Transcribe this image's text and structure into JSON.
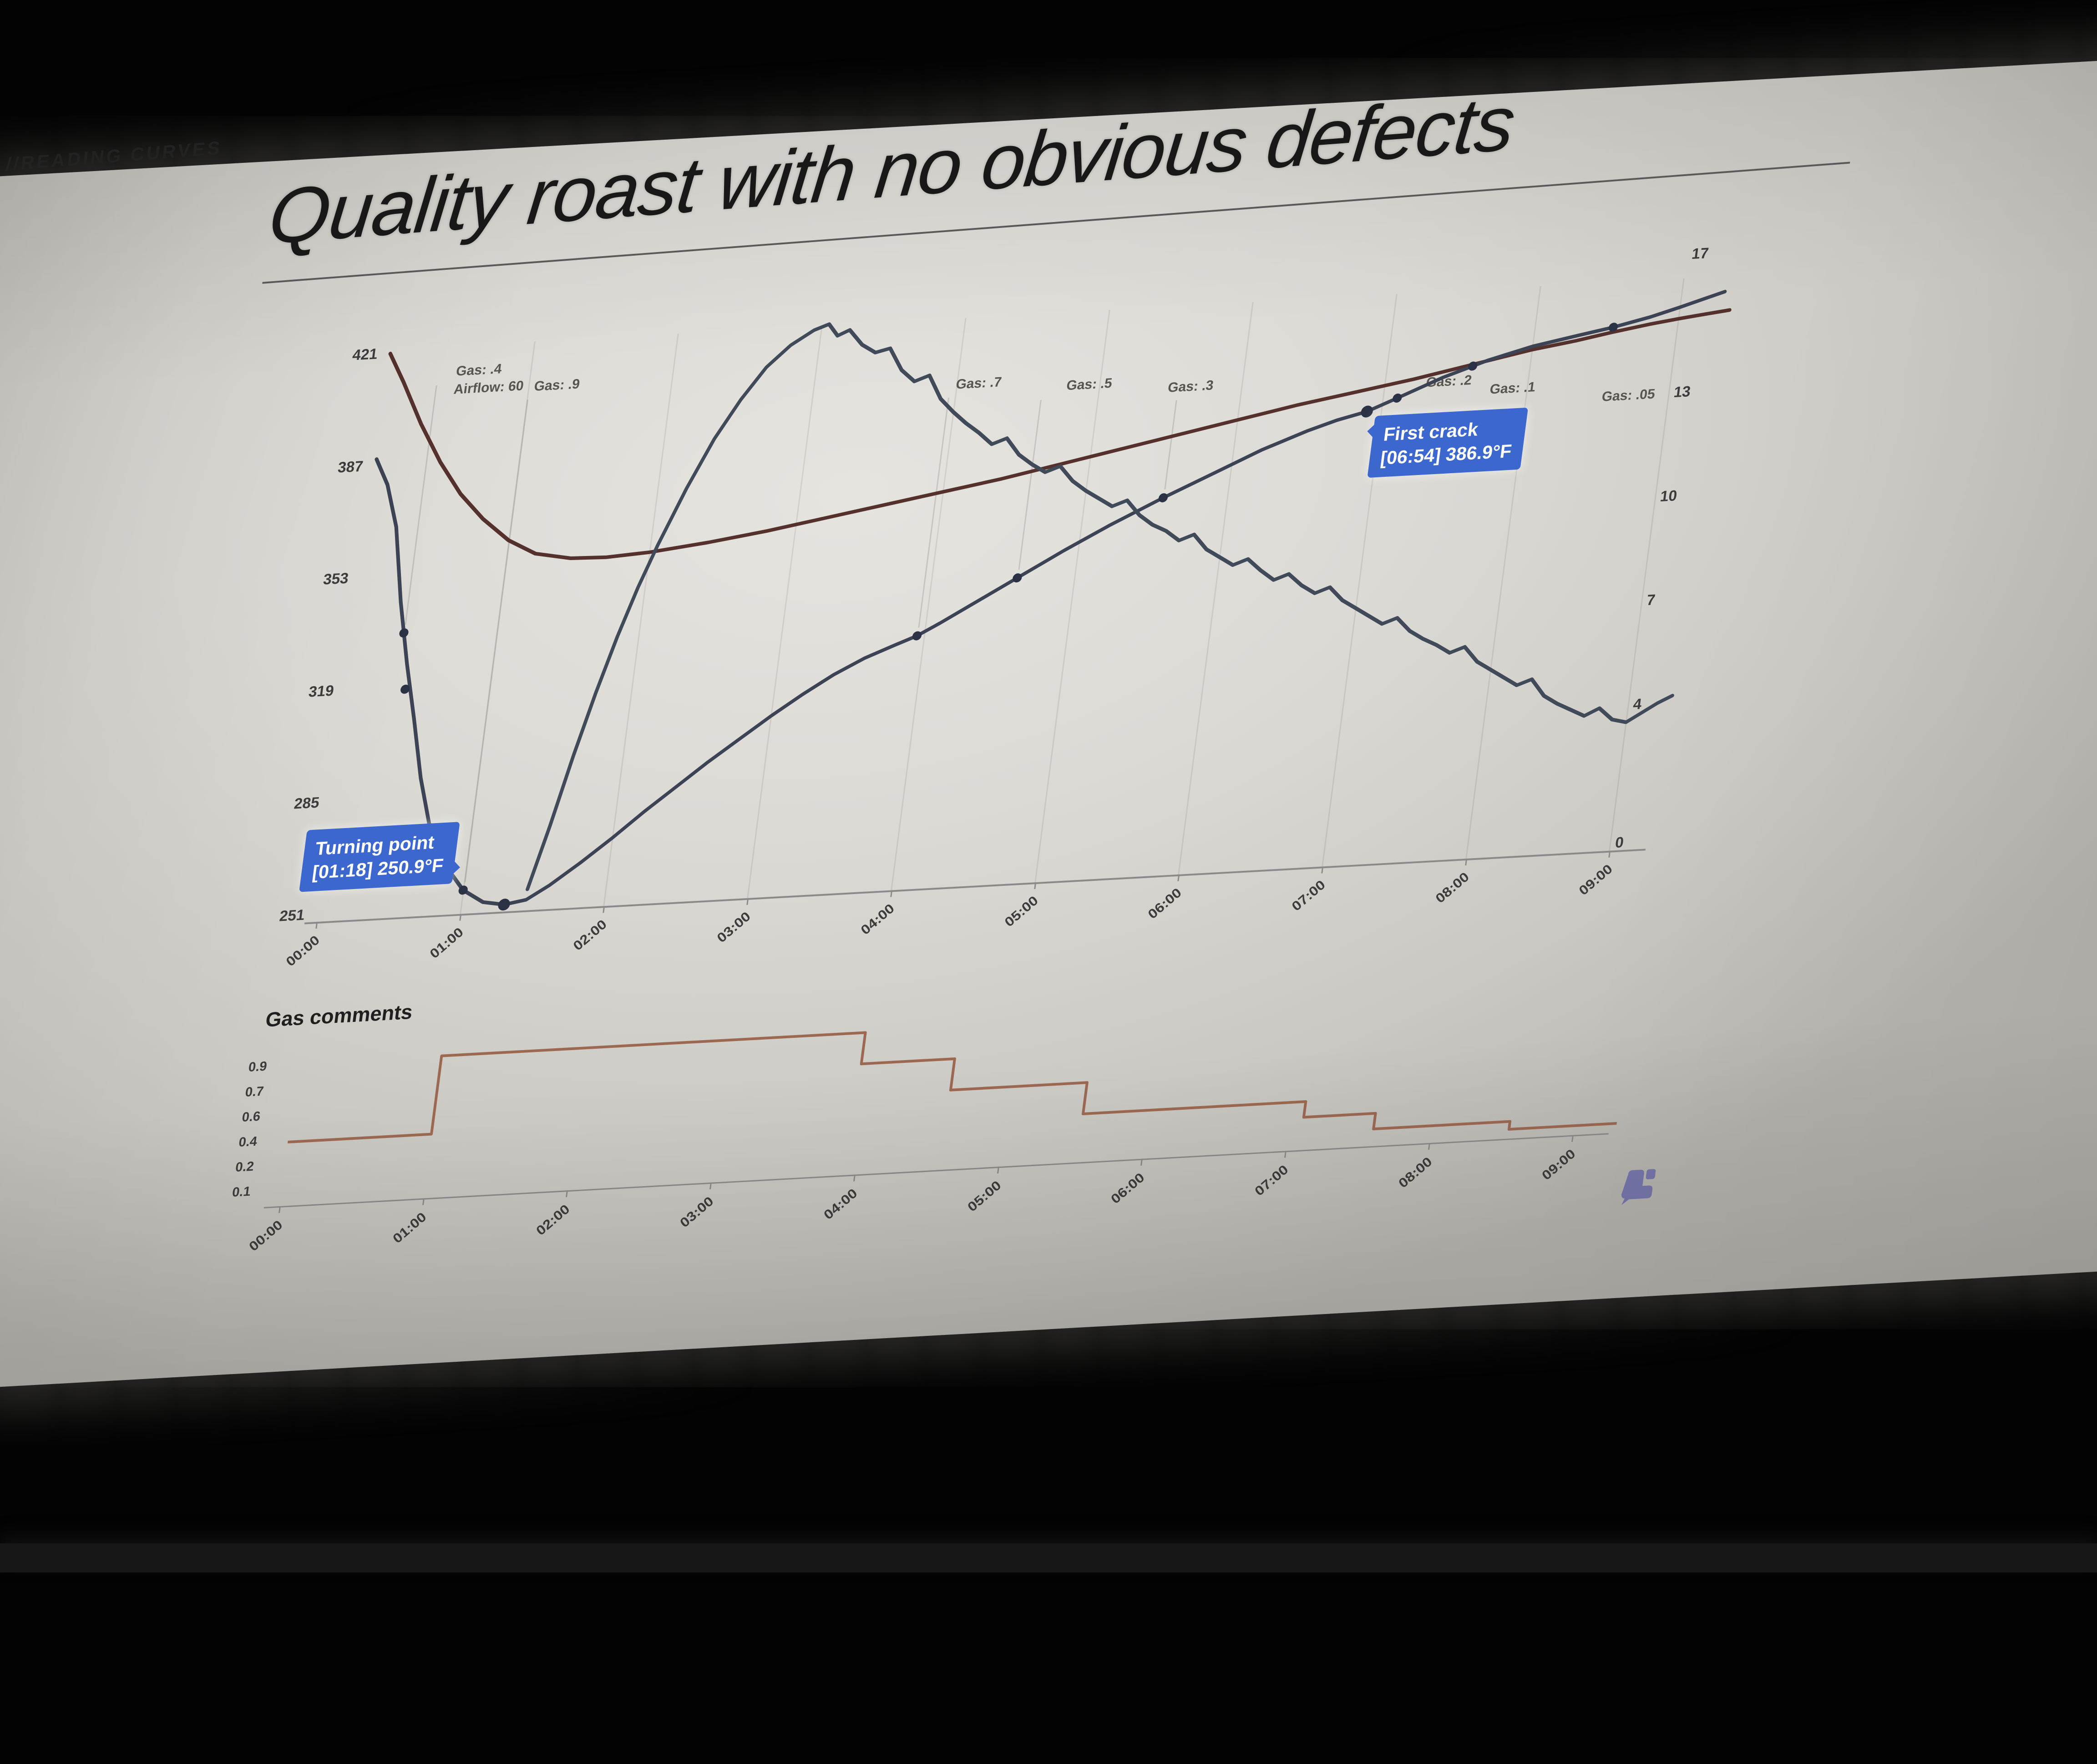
{
  "photo": {
    "background": "#030303",
    "floor_strip": "#171717"
  },
  "slide": {
    "kicker": "//READING CURVES",
    "title": "Quality roast with no obvious defects",
    "background": "#d8d6d1",
    "logo": "cropster-mark",
    "logo_color": "#7877ad"
  },
  "callouts": {
    "turning_point": {
      "title": "Turning point",
      "detail": "[01:18] 250.9°F",
      "color": "#3b67cf"
    },
    "first_crack": {
      "title": "First crack",
      "detail": "[06:54] 386.9°F",
      "color": "#3b67cf"
    }
  },
  "chart_data": [
    {
      "id": "roast-graph",
      "type": "line",
      "x_axis": {
        "unit": "mm:ss",
        "ticks": [
          "00:00",
          "01:00",
          "02:00",
          "03:00",
          "04:00",
          "05:00",
          "06:00",
          "07:00",
          "08:00",
          "09:00"
        ],
        "minutes": [
          0,
          1,
          2,
          3,
          4,
          5,
          6,
          7,
          8,
          9
        ],
        "range": [
          0,
          9.4
        ],
        "grid": true
      },
      "y_axis_left": {
        "unit": "°F",
        "ticks": [
          421,
          387,
          353,
          319,
          285,
          251
        ],
        "range": [
          251,
          421
        ]
      },
      "y_axis_right": {
        "unit": "RoR",
        "ticks": [
          17,
          13,
          10,
          7,
          4,
          0
        ],
        "range": [
          0,
          17
        ]
      },
      "series": [
        {
          "name": "environment-temp",
          "color": "#54312c",
          "axis": "left",
          "points": [
            [
              0,
              421
            ],
            [
              0.12,
              412
            ],
            [
              0.28,
              399
            ],
            [
              0.45,
              387
            ],
            [
              0.62,
              377
            ],
            [
              0.8,
              369
            ],
            [
              1.0,
              362
            ],
            [
              1.2,
              357.5
            ],
            [
              1.45,
              355.5
            ],
            [
              1.7,
              355.2
            ],
            [
              2.0,
              356
            ],
            [
              2.4,
              358
            ],
            [
              2.8,
              360.5
            ],
            [
              3.2,
              363.5
            ],
            [
              3.6,
              366.5
            ],
            [
              4.0,
              369.5
            ],
            [
              4.4,
              372.5
            ],
            [
              4.8,
              376
            ],
            [
              5.2,
              379.5
            ],
            [
              5.6,
              383
            ],
            [
              6.0,
              386.5
            ],
            [
              6.4,
              390
            ],
            [
              6.8,
              393
            ],
            [
              7.2,
              396
            ],
            [
              7.6,
              399.5
            ],
            [
              8.0,
              403
            ],
            [
              8.3,
              405
            ],
            [
              8.55,
              407
            ],
            [
              8.8,
              408.8
            ],
            [
              9.0,
              410
            ],
            [
              9.15,
              410.8
            ],
            [
              9.35,
              411.8
            ]
          ]
        },
        {
          "name": "bean-temp",
          "color": "#3b4354",
          "axis": "left",
          "points": [
            [
              0,
              389
            ],
            [
              0.1,
              381
            ],
            [
              0.2,
              368
            ],
            [
              0.3,
              345
            ],
            [
              0.4,
              326
            ],
            [
              0.5,
              309
            ],
            [
              0.6,
              291
            ],
            [
              0.7,
              277
            ],
            [
              0.85,
              264
            ],
            [
              1.0,
              256
            ],
            [
              1.15,
              252
            ],
            [
              1.3,
              250.9
            ],
            [
              1.45,
              252
            ],
            [
              1.6,
              256
            ],
            [
              1.8,
              262.5
            ],
            [
              2.0,
              269.5
            ],
            [
              2.2,
              277
            ],
            [
              2.4,
              284
            ],
            [
              2.6,
              291
            ],
            [
              2.8,
              297.5
            ],
            [
              3.0,
              304
            ],
            [
              3.2,
              310
            ],
            [
              3.4,
              315.5
            ],
            [
              3.6,
              320
            ],
            [
              3.8,
              323.5
            ],
            [
              3.95,
              326
            ],
            [
              4.1,
              329.5
            ],
            [
              4.3,
              334.5
            ],
            [
              4.6,
              342
            ],
            [
              4.9,
              349.5
            ],
            [
              5.2,
              356.5
            ],
            [
              5.55,
              364
            ],
            [
              5.9,
              371
            ],
            [
              6.2,
              377
            ],
            [
              6.5,
              382
            ],
            [
              6.7,
              384.8
            ],
            [
              6.9,
              386.9
            ],
            [
              7.1,
              390.5
            ],
            [
              7.4,
              396
            ],
            [
              7.7,
              400.5
            ],
            [
              8.0,
              404
            ],
            [
              8.3,
              406.5
            ],
            [
              8.55,
              408.5
            ],
            [
              8.8,
              411
            ],
            [
              9.0,
              413.5
            ],
            [
              9.15,
              415.5
            ],
            [
              9.3,
              417.5
            ]
          ]
        },
        {
          "name": "rate-of-rise",
          "color": "#414a59",
          "axis": "right",
          "points": [
            [
              1.45,
              0.4
            ],
            [
              1.55,
              2.2
            ],
            [
              1.65,
              4.2
            ],
            [
              1.75,
              6.0
            ],
            [
              1.85,
              7.6
            ],
            [
              1.95,
              9.0
            ],
            [
              2.05,
              10.2
            ],
            [
              2.2,
              11.8
            ],
            [
              2.35,
              13.2
            ],
            [
              2.5,
              14.3
            ],
            [
              2.65,
              15.2
            ],
            [
              2.8,
              15.8
            ],
            [
              2.95,
              16.2
            ],
            [
              3.05,
              16.35
            ],
            [
              3.12,
              16.0
            ],
            [
              3.2,
              16.15
            ],
            [
              3.3,
              15.7
            ],
            [
              3.4,
              15.45
            ],
            [
              3.5,
              15.55
            ],
            [
              3.6,
              14.9
            ],
            [
              3.7,
              14.55
            ],
            [
              3.8,
              14.7
            ],
            [
              3.9,
              14.0
            ],
            [
              4.0,
              13.6
            ],
            [
              4.1,
              13.25
            ],
            [
              4.2,
              12.95
            ],
            [
              4.3,
              12.6
            ],
            [
              4.4,
              12.75
            ],
            [
              4.5,
              12.25
            ],
            [
              4.6,
              11.95
            ],
            [
              4.7,
              11.7
            ],
            [
              4.8,
              11.85
            ],
            [
              4.9,
              11.4
            ],
            [
              5.0,
              11.1
            ],
            [
              5.1,
              10.85
            ],
            [
              5.2,
              10.6
            ],
            [
              5.3,
              10.75
            ],
            [
              5.4,
              10.3
            ],
            [
              5.5,
              10.0
            ],
            [
              5.6,
              9.8
            ],
            [
              5.7,
              9.5
            ],
            [
              5.8,
              9.65
            ],
            [
              5.9,
              9.2
            ],
            [
              6.0,
              8.95
            ],
            [
              6.1,
              8.7
            ],
            [
              6.2,
              8.85
            ],
            [
              6.3,
              8.5
            ],
            [
              6.4,
              8.2
            ],
            [
              6.5,
              8.35
            ],
            [
              6.6,
              8.0
            ],
            [
              6.7,
              7.75
            ],
            [
              6.8,
              7.9
            ],
            [
              6.9,
              7.5
            ],
            [
              7.0,
              7.25
            ],
            [
              7.1,
              7.0
            ],
            [
              7.2,
              6.75
            ],
            [
              7.3,
              6.9
            ],
            [
              7.4,
              6.5
            ],
            [
              7.5,
              6.25
            ],
            [
              7.6,
              6.05
            ],
            [
              7.7,
              5.8
            ],
            [
              7.8,
              5.95
            ],
            [
              7.9,
              5.5
            ],
            [
              8.0,
              5.25
            ],
            [
              8.1,
              5.0
            ],
            [
              8.2,
              4.75
            ],
            [
              8.3,
              4.9
            ],
            [
              8.4,
              4.4
            ],
            [
              8.5,
              4.15
            ],
            [
              8.6,
              3.95
            ],
            [
              8.7,
              3.75
            ],
            [
              8.8,
              3.95
            ],
            [
              8.9,
              3.6
            ],
            [
              9.0,
              3.5
            ],
            [
              9.1,
              3.75
            ],
            [
              9.2,
              4.0
            ],
            [
              9.3,
              4.2
            ]
          ]
        }
      ],
      "events": [
        {
          "t": 0.35,
          "label": "Gas: .4",
          "label2": "Airflow: 60",
          "lx": 1005,
          "ly": 462,
          "double_dot": true
        },
        {
          "t": 1.0,
          "label": "Gas: .9",
          "lx": 1182,
          "ly": 505
        },
        {
          "t": 3.95,
          "label": "Gas: .7",
          "lx": 2115,
          "ly": 552
        },
        {
          "t": 4.6,
          "label": "Gas: .5",
          "lx": 2360,
          "ly": 568
        },
        {
          "t": 5.55,
          "label": "Gas: .3",
          "lx": 2585,
          "ly": 585
        },
        {
          "t": 7.1,
          "label": "Gas: .2",
          "lx": 3155,
          "ly": 605
        },
        {
          "t": 7.6,
          "label": "Gas: .1",
          "lx": 3298,
          "ly": 628
        },
        {
          "t": 8.55,
          "label": "Gas: .05",
          "lx": 3548,
          "ly": 658
        }
      ],
      "markers": [
        {
          "name": "turning-point",
          "t": 1.3,
          "temp": 250.9
        },
        {
          "name": "first-crack",
          "t": 6.9,
          "temp": 386.9
        }
      ]
    },
    {
      "id": "gas-comments",
      "type": "step",
      "title": "Gas comments",
      "color": "#9c6852",
      "x_axis": {
        "ticks": [
          "00:00",
          "01:00",
          "02:00",
          "03:00",
          "04:00",
          "05:00",
          "06:00",
          "07:00",
          "08:00",
          "09:00"
        ],
        "minutes": [
          0,
          1,
          2,
          3,
          4,
          5,
          6,
          7,
          8,
          9
        ]
      },
      "y_axis": {
        "ticks": [
          0.9,
          0.7,
          0.6,
          0.4,
          0.2,
          0.1
        ]
      },
      "steps": [
        [
          0,
          0.4
        ],
        [
          1.0,
          0.9
        ],
        [
          3.95,
          0.7
        ],
        [
          4.6,
          0.5
        ],
        [
          5.55,
          0.3
        ],
        [
          7.1,
          0.2
        ],
        [
          7.6,
          0.1
        ],
        [
          8.55,
          0.05
        ]
      ],
      "end_t": 9.3
    }
  ]
}
